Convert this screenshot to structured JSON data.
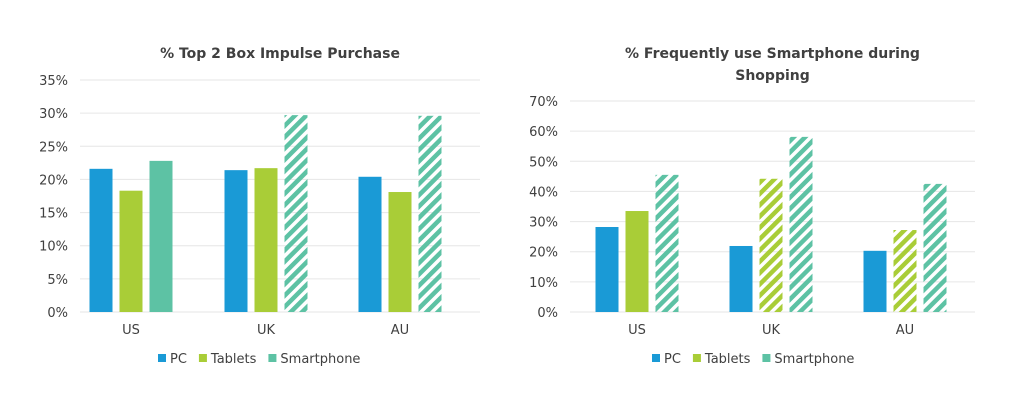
{
  "colors": {
    "PC": "#1a9ad6",
    "Tablets": "#a9cd37",
    "Smartphone": "#5dc2a4",
    "grid": "#e6e6e6",
    "text": "#404040"
  },
  "chart_data": [
    {
      "type": "bar",
      "title": "% Top 2 Box Impulse Purchase",
      "categories": [
        "US",
        "UK",
        "AU"
      ],
      "ylim": [
        0,
        35
      ],
      "yticks": [
        "0%",
        "5%",
        "10%",
        "15%",
        "20%",
        "25%",
        "30%",
        "35%"
      ],
      "ytick_values": [
        0,
        5,
        10,
        15,
        20,
        25,
        30,
        35
      ],
      "grid": true,
      "legend": "bottom",
      "series": [
        {
          "name": "PC",
          "values": [
            21.6,
            21.4,
            20.4
          ],
          "hatched": [
            false,
            false,
            false
          ]
        },
        {
          "name": "Tablets",
          "values": [
            18.3,
            21.7,
            18.1
          ],
          "hatched": [
            false,
            false,
            false
          ]
        },
        {
          "name": "Smartphone",
          "values": [
            22.8,
            29.7,
            29.6
          ],
          "hatched": [
            false,
            true,
            true
          ]
        }
      ]
    },
    {
      "type": "bar",
      "title": [
        "% Frequently use Smartphone during",
        "Shopping"
      ],
      "categories": [
        "US",
        "UK",
        "AU"
      ],
      "ylim": [
        0,
        70
      ],
      "yticks": [
        "0%",
        "10%",
        "20%",
        "30%",
        "40%",
        "50%",
        "60%",
        "70%"
      ],
      "ytick_values": [
        0,
        10,
        20,
        30,
        40,
        50,
        60,
        70
      ],
      "grid": true,
      "legend": "bottom",
      "series": [
        {
          "name": "PC",
          "values": [
            28.2,
            21.9,
            20.3
          ],
          "hatched": [
            false,
            false,
            false
          ]
        },
        {
          "name": "Tablets",
          "values": [
            33.5,
            44.2,
            27.2
          ],
          "hatched": [
            false,
            true,
            true
          ]
        },
        {
          "name": "Smartphone",
          "values": [
            45.5,
            58.1,
            42.5
          ],
          "hatched": [
            true,
            true,
            true
          ]
        }
      ]
    }
  ]
}
